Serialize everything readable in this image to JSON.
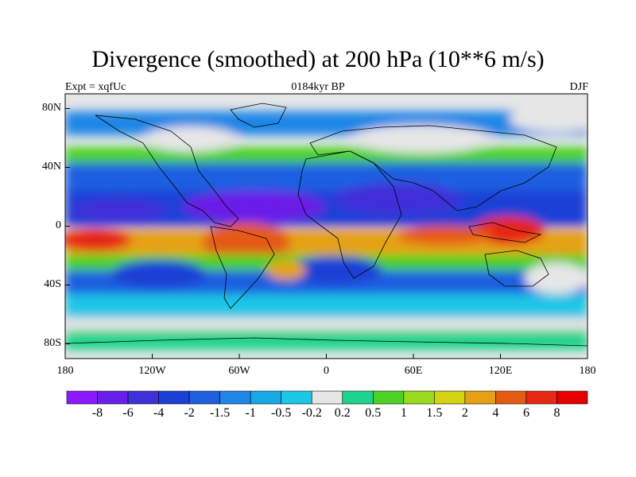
{
  "title": "Divergence (smoothed) at 200 hPa (10**6 m/s)",
  "experiment": "Expt = xqfUc",
  "period": "0184kyr BP",
  "season": "DJF",
  "axes": {
    "y_ticks": [
      {
        "label": "80N",
        "lat": 80
      },
      {
        "label": "40N",
        "lat": 40
      },
      {
        "label": "0",
        "lat": 0
      },
      {
        "label": "40S",
        "lat": -40
      },
      {
        "label": "80S",
        "lat": -80
      }
    ],
    "x_ticks": [
      {
        "label": "180",
        "lon": -180
      },
      {
        "label": "120W",
        "lon": -120
      },
      {
        "label": "60W",
        "lon": -60
      },
      {
        "label": "0",
        "lon": 0
      },
      {
        "label": "60E",
        "lon": 60
      },
      {
        "label": "120E",
        "lon": 120
      },
      {
        "label": "180",
        "lon": 180
      }
    ],
    "lon_range": [
      -180,
      180
    ],
    "lat_range": [
      -90,
      90
    ]
  },
  "colorbar": {
    "labels": [
      "-8",
      "-6",
      "-4",
      "-2",
      "-1.5",
      "-1",
      "-0.5",
      "-0.2",
      "0.2",
      "0.5",
      "1",
      "1.5",
      "2",
      "4",
      "6",
      "8"
    ],
    "colors": [
      "#8C1AFF",
      "#6A1FE8",
      "#3F2FD9",
      "#1C3FD6",
      "#1E5FE0",
      "#1F86E6",
      "#17A8E8",
      "#1CC6E6",
      "#E6E6E6",
      "#1ED48C",
      "#4CD224",
      "#99DA1E",
      "#D4D414",
      "#E6A014",
      "#E65A14",
      "#E62814",
      "#E60000"
    ]
  },
  "colors": {
    "land_outline": "#000000",
    "background": "#ffffff"
  }
}
